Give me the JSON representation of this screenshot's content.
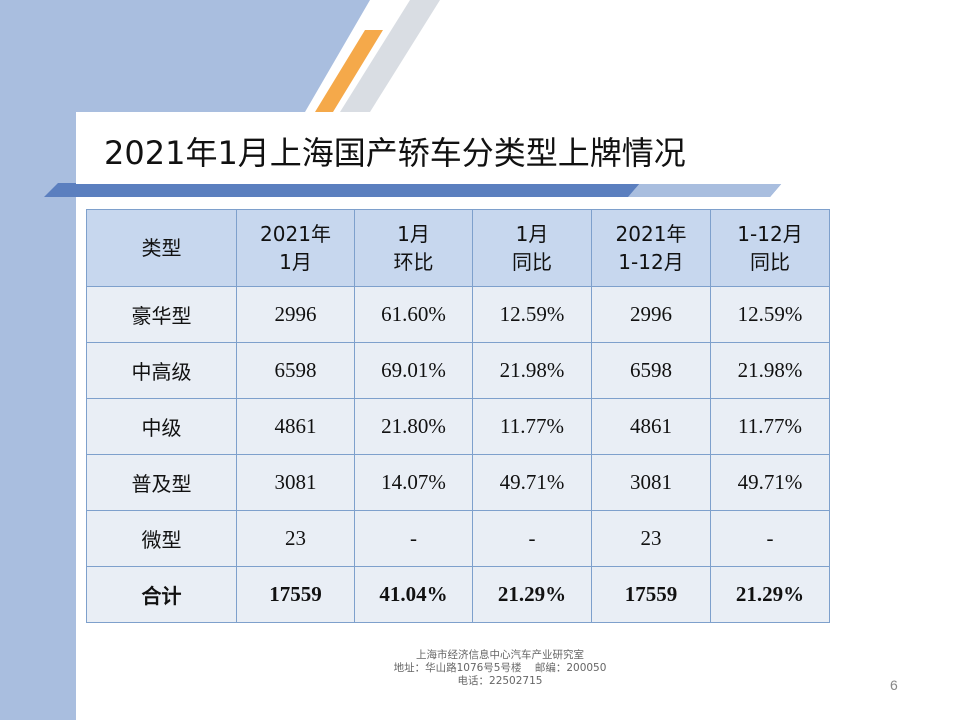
{
  "slide": {
    "title": "2021年1月上海国产轿车分类型上牌情况",
    "page_number": "6"
  },
  "table": {
    "headers": [
      {
        "line1": "类型",
        "line2": ""
      },
      {
        "line1": "2021年",
        "line2": "1月"
      },
      {
        "line1": "1月",
        "line2": "环比"
      },
      {
        "line1": "1月",
        "line2": "同比"
      },
      {
        "line1": "2021年",
        "line2": "1-12月"
      },
      {
        "line1": "1-12月",
        "line2": "同比"
      }
    ],
    "rows": [
      [
        "豪华型",
        "2996",
        "61.60%",
        "12.59%",
        "2996",
        "12.59%"
      ],
      [
        "中高级",
        "6598",
        "69.01%",
        "21.98%",
        "6598",
        "21.98%"
      ],
      [
        "中级",
        "4861",
        "21.80%",
        "11.77%",
        "4861",
        "11.77%"
      ],
      [
        "普及型",
        "3081",
        "14.07%",
        "49.71%",
        "3081",
        "49.71%"
      ],
      [
        "微型",
        "23",
        "-",
        "-",
        "23",
        "-"
      ],
      [
        "合计",
        "17559",
        "41.04%",
        "21.29%",
        "17559",
        "21.29%"
      ]
    ]
  },
  "footer": {
    "line1": "上海市经济信息中心汽车产业研究室",
    "line2": "地址：华山路1076号5号楼    邮编：200050",
    "line3": "电话：22502715"
  },
  "colors": {
    "header_fill": "#c7d7ee",
    "cell_fill": "#e9eef5",
    "border": "#7ea0cc",
    "sidebar_blue": "#a9bedf",
    "accent_orange": "#f5a94a",
    "bar_blue": "#5b7fbf"
  }
}
